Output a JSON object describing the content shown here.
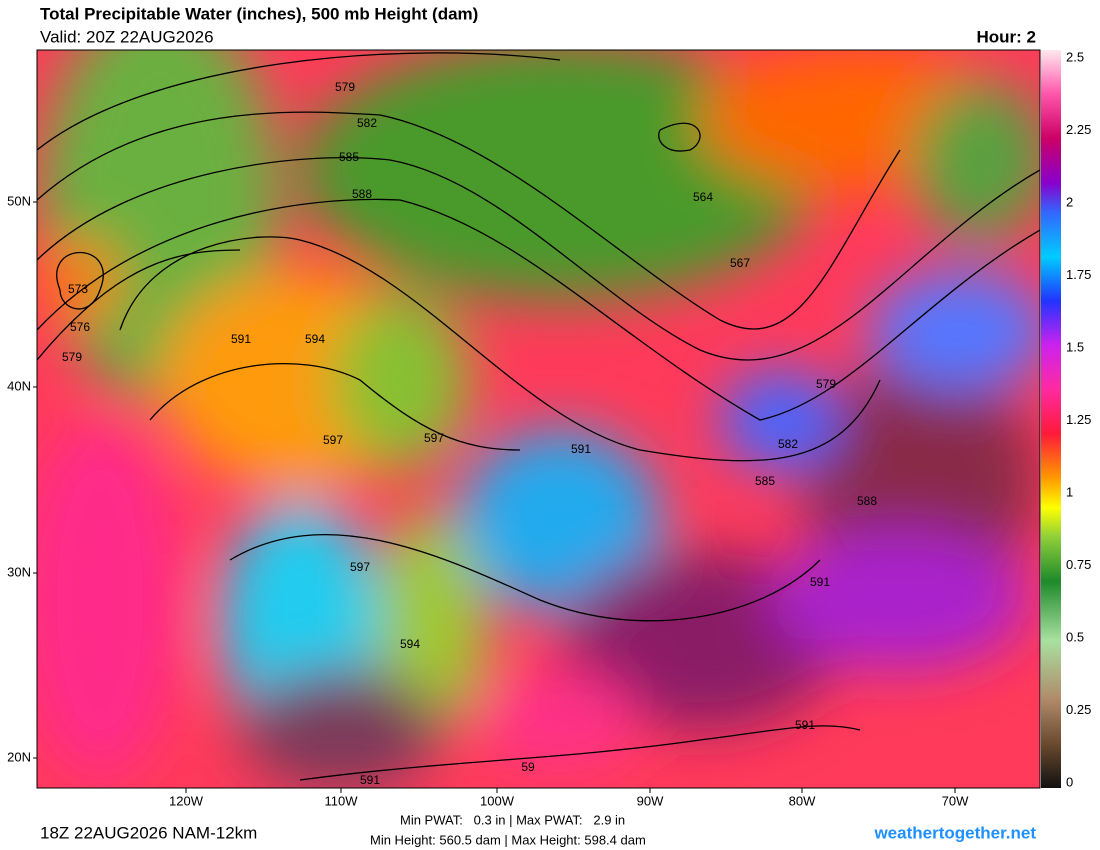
{
  "header": {
    "title": "Total Precipitable Water (inches), 500 mb Height (dam)",
    "valid": "Valid: 20Z 22AUG2026",
    "hour": "Hour: 2"
  },
  "colorbar": {
    "ticks": [
      0,
      0.25,
      0.5,
      0.75,
      1,
      1.25,
      1.5,
      1.75,
      2,
      2.25,
      2.5
    ]
  },
  "latitude_labels": [
    "50N",
    "40N",
    "30N",
    "20N"
  ],
  "longitude_labels": [
    "120W",
    "110W",
    "100W",
    "90W",
    "80W",
    "70W"
  ],
  "contour_labels": [
    579,
    582,
    585,
    588,
    564,
    567,
    573,
    576,
    579,
    591,
    594,
    597,
    597,
    591,
    579,
    582,
    585,
    588,
    591,
    597,
    594,
    591,
    591,
    59
  ],
  "footer": {
    "run": "18Z 22AUG2026 NAM-12km",
    "pwat": "Min PWAT:   0.3 in | Max PWAT:   2.9 in",
    "height": "Min Height: 560.5 dam | Max Height: 598.4 dam",
    "site": "weathertogether.net"
  }
}
